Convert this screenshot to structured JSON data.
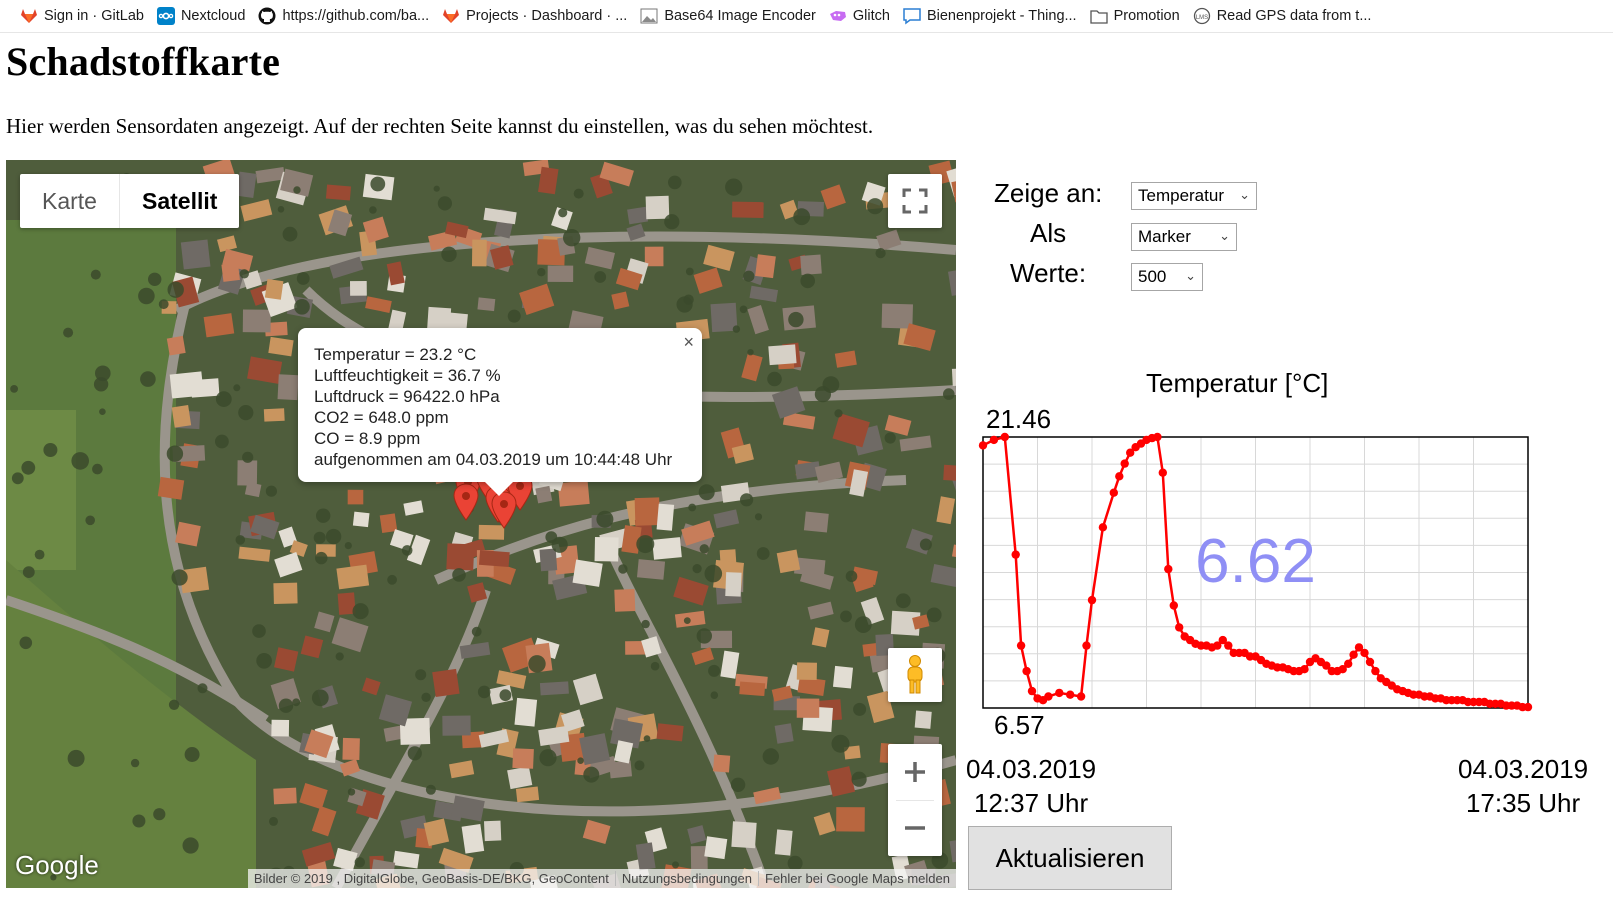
{
  "bookmarks": [
    {
      "label": "Sign in · GitLab",
      "icon": "gitlab-icon"
    },
    {
      "label": "Nextcloud",
      "icon": "nextcloud-icon"
    },
    {
      "label": "https://github.com/ba...",
      "icon": "github-icon"
    },
    {
      "label": "Projects · Dashboard · ...",
      "icon": "gitlab-icon"
    },
    {
      "label": "Base64 Image Encoder",
      "icon": "image-icon"
    },
    {
      "label": "Glitch",
      "icon": "glitch-icon"
    },
    {
      "label": "Bienenprojekt - Thing...",
      "icon": "chat-icon"
    },
    {
      "label": "Promotion",
      "icon": "folder-icon"
    },
    {
      "label": "Read GPS data from t...",
      "icon": "globe-icon"
    }
  ],
  "page": {
    "title": "Schadstoffkarte",
    "intro": "Hier werden Sensordaten angezeigt. Auf der rechten Seite kannst du einstellen, was du sehen möchtest."
  },
  "map": {
    "type_map": "Karte",
    "type_satellite": "Satellit",
    "selected_type": "Satellit",
    "logo": "Google",
    "attribution": "Bilder © 2019 , DigitalGlobe, GeoBasis-DE/BKG, GeoContent",
    "terms": "Nutzungsbedingungen",
    "report": "Fehler bei Google Maps melden",
    "zoom_in": "+",
    "zoom_out": "−",
    "info_window": {
      "close": "×",
      "lines": [
        "Temperatur = 23.2 °C",
        "Luftfeuchtigkeit = 36.7 %",
        "Luftdruck = 96422.0 hPa",
        "CO2 = 648.0 ppm",
        "CO = 8.9 ppm",
        "aufgenommen am 04.03.2019 um 10:44:48 Uhr"
      ]
    }
  },
  "controls": {
    "show_label": "Zeige an:",
    "show_value": "Temperatur",
    "as_label": "Als",
    "as_value": "Marker",
    "values_label": "Werte:",
    "values_value": "500",
    "refresh": "Aktualisieren"
  },
  "chart_data": {
    "type": "line",
    "title": "Temperatur [°C]",
    "ymax_label": "21.46",
    "ymin_label": "6.57",
    "current_label": "6.62",
    "ylim": [
      6.57,
      21.46
    ],
    "x_start_date": "04.03.2019",
    "x_start_time": "12:37 Uhr",
    "x_end_date": "04.03.2019",
    "x_end_time": "17:35 Uhr",
    "color": "#ff0000",
    "current_color": "#8f8ff5",
    "x": [
      0,
      2,
      4,
      6,
      7,
      8,
      9,
      10,
      11,
      12,
      14,
      16,
      18,
      19,
      20,
      22,
      24,
      25,
      26,
      27,
      28,
      29,
      30,
      31,
      32,
      33,
      34,
      35,
      36,
      37,
      38,
      39,
      40,
      41,
      42,
      43,
      44,
      45,
      46,
      47,
      48,
      49,
      50,
      51,
      52,
      53,
      54,
      55,
      56,
      57,
      58,
      59,
      60,
      61,
      62,
      63,
      64,
      65,
      66,
      67,
      68,
      69,
      70,
      71,
      72,
      73,
      74,
      75,
      76,
      77,
      78,
      79,
      80,
      81,
      82,
      83,
      84,
      85,
      86,
      87,
      88,
      89,
      90,
      91,
      92,
      93,
      94,
      95,
      96,
      97,
      98,
      99,
      100
    ],
    "values": [
      21.0,
      21.3,
      21.46,
      15.0,
      10.0,
      8.6,
      7.5,
      7.1,
      7.0,
      7.2,
      7.4,
      7.3,
      7.2,
      10.0,
      12.5,
      16.5,
      18.4,
      19.3,
      20.0,
      20.6,
      20.9,
      21.1,
      21.3,
      21.4,
      21.46,
      19.5,
      14.2,
      12.2,
      11.0,
      10.5,
      10.3,
      10.1,
      10.0,
      10.0,
      9.9,
      10.0,
      10.3,
      10.0,
      9.6,
      9.6,
      9.6,
      9.4,
      9.4,
      9.2,
      9.0,
      8.9,
      8.8,
      8.8,
      8.7,
      8.6,
      8.6,
      8.7,
      9.1,
      9.3,
      9.1,
      8.9,
      8.6,
      8.6,
      8.7,
      9.0,
      9.5,
      9.9,
      9.6,
      9.1,
      8.6,
      8.2,
      8.0,
      7.8,
      7.6,
      7.5,
      7.4,
      7.3,
      7.3,
      7.2,
      7.2,
      7.1,
      7.1,
      7.0,
      7.0,
      7.0,
      7.0,
      6.9,
      6.9,
      6.9,
      6.9,
      6.8,
      6.8,
      6.8,
      6.7,
      6.7,
      6.7,
      6.62,
      6.62
    ]
  }
}
